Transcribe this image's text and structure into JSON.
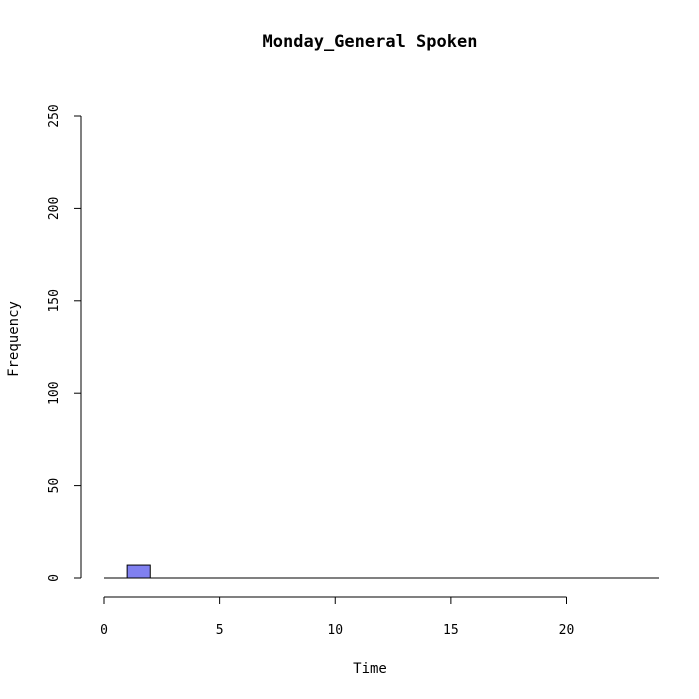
{
  "chart_data": {
    "type": "bar",
    "title": "Monday_General Spoken",
    "xlabel": "Time",
    "ylabel": "Frequency",
    "xlim": [
      0,
      24
    ],
    "ylim": [
      0,
      250
    ],
    "x_ticks": [
      "0",
      "5",
      "10",
      "15",
      "20"
    ],
    "y_ticks": [
      "0",
      "50",
      "100",
      "150",
      "200",
      "250"
    ],
    "bins": [
      {
        "x0": 0,
        "x1": 1,
        "value": 0
      },
      {
        "x0": 1,
        "x1": 2,
        "value": 7
      },
      {
        "x0": 2,
        "x1": 3,
        "value": 0
      },
      {
        "x0": 3,
        "x1": 4,
        "value": 0
      },
      {
        "x0": 4,
        "x1": 5,
        "value": 0
      },
      {
        "x0": 5,
        "x1": 6,
        "value": 0
      },
      {
        "x0": 6,
        "x1": 7,
        "value": 0
      },
      {
        "x0": 7,
        "x1": 8,
        "value": 0
      },
      {
        "x0": 8,
        "x1": 9,
        "value": 0
      },
      {
        "x0": 9,
        "x1": 10,
        "value": 0
      },
      {
        "x0": 10,
        "x1": 11,
        "value": 0
      },
      {
        "x0": 11,
        "x1": 12,
        "value": 0
      },
      {
        "x0": 12,
        "x1": 13,
        "value": 0
      },
      {
        "x0": 13,
        "x1": 14,
        "value": 0
      },
      {
        "x0": 14,
        "x1": 15,
        "value": 0
      },
      {
        "x0": 15,
        "x1": 16,
        "value": 0
      },
      {
        "x0": 16,
        "x1": 17,
        "value": 0
      },
      {
        "x0": 17,
        "x1": 18,
        "value": 0
      },
      {
        "x0": 18,
        "x1": 19,
        "value": 0
      },
      {
        "x0": 19,
        "x1": 20,
        "value": 0
      },
      {
        "x0": 20,
        "x1": 21,
        "value": 0
      },
      {
        "x0": 21,
        "x1": 22,
        "value": 0
      },
      {
        "x0": 22,
        "x1": 23,
        "value": 0
      },
      {
        "x0": 23,
        "x1": 24,
        "value": 0
      }
    ],
    "bar_color": "#8080f0",
    "grid": false,
    "legend": "none"
  }
}
